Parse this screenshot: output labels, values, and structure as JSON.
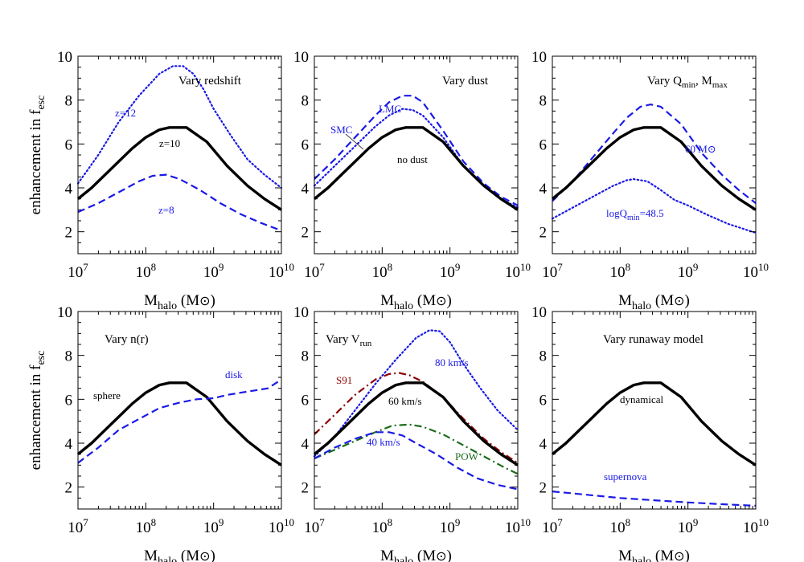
{
  "figure": {
    "xlabel": {
      "main": "M",
      "sub": "halo",
      "tail": " (M",
      "sun": "⊙",
      "close": ")"
    },
    "ylabel": {
      "main": "enhancement in f",
      "sub": "esc"
    },
    "xticks": [
      {
        "value": 7,
        "label": "10",
        "exp": "7"
      },
      {
        "value": 8,
        "label": "10",
        "exp": "8"
      },
      {
        "value": 9,
        "label": "10",
        "exp": "9"
      },
      {
        "value": 10,
        "label": "10",
        "exp": "10"
      }
    ],
    "yticks": [
      2,
      4,
      6,
      8,
      10
    ]
  },
  "chart_data": [
    {
      "type": "line",
      "title": "Vary redshift",
      "x_scale": "log",
      "xlim": [
        10000000.0,
        10000000000.0
      ],
      "ylim": [
        1,
        10
      ],
      "series": [
        {
          "name": "z=12",
          "style": "dotted",
          "color": "#1a1ae6",
          "width": 2.2,
          "x": [
            7,
            7.3,
            7.6,
            7.9,
            8.2,
            8.4,
            8.55,
            8.7,
            8.85,
            9.0,
            9.25,
            9.5,
            9.75,
            10
          ],
          "y": [
            4.2,
            5.5,
            7.0,
            8.2,
            9.2,
            9.55,
            9.55,
            9.2,
            8.5,
            7.6,
            6.4,
            5.3,
            4.6,
            4.0
          ]
        },
        {
          "name": "z=10",
          "style": "solid",
          "color": "#000000",
          "width": 3.4,
          "x": [
            7,
            7.2,
            7.5,
            7.8,
            8.0,
            8.2,
            8.35,
            8.6,
            8.9,
            9.2,
            9.5,
            9.75,
            10
          ],
          "y": [
            3.5,
            4.0,
            4.9,
            5.8,
            6.3,
            6.65,
            6.75,
            6.75,
            6.1,
            5.0,
            4.1,
            3.5,
            3.0
          ]
        },
        {
          "name": "z=8",
          "style": "dashed",
          "color": "#1a1ae6",
          "width": 2.2,
          "x": [
            7,
            7.3,
            7.6,
            7.9,
            8.1,
            8.3,
            8.5,
            8.8,
            9.1,
            9.4,
            9.7,
            10
          ],
          "y": [
            2.9,
            3.3,
            3.8,
            4.3,
            4.55,
            4.6,
            4.4,
            3.9,
            3.3,
            2.8,
            2.4,
            2.05
          ]
        }
      ]
    },
    {
      "type": "line",
      "title": "Vary dust",
      "x_scale": "log",
      "xlim": [
        10000000.0,
        10000000000.0
      ],
      "ylim": [
        1,
        10
      ],
      "series": [
        {
          "name": "LMC",
          "style": "dashed",
          "color": "#1a1ae6",
          "width": 2.2,
          "x": [
            7,
            7.3,
            7.6,
            7.9,
            8.1,
            8.3,
            8.45,
            8.6,
            8.9,
            9.2,
            9.5,
            9.75,
            10
          ],
          "y": [
            4.4,
            5.3,
            6.3,
            7.3,
            7.9,
            8.2,
            8.2,
            7.9,
            6.6,
            5.2,
            4.2,
            3.6,
            3.2
          ]
        },
        {
          "name": "SMC",
          "style": "dotted",
          "color": "#1a1ae6",
          "width": 2.2,
          "x": [
            7,
            7.3,
            7.6,
            7.9,
            8.1,
            8.3,
            8.45,
            8.6,
            8.9,
            9.2,
            9.5,
            9.75,
            10
          ],
          "y": [
            4.1,
            5.0,
            5.9,
            6.8,
            7.3,
            7.6,
            7.55,
            7.3,
            6.3,
            5.0,
            4.1,
            3.5,
            3.1
          ]
        },
        {
          "name": "no dust",
          "style": "solid",
          "color": "#000000",
          "width": 3.4,
          "x": [
            7,
            7.2,
            7.5,
            7.8,
            8.0,
            8.2,
            8.35,
            8.6,
            8.9,
            9.2,
            9.5,
            9.75,
            10
          ],
          "y": [
            3.5,
            4.0,
            4.9,
            5.8,
            6.3,
            6.65,
            6.75,
            6.75,
            6.1,
            5.0,
            4.1,
            3.5,
            3.0
          ]
        }
      ]
    },
    {
      "type": "line",
      "title": "Vary Q",
      "title_sub": "min",
      "title_tail": ", M",
      "title_sub2": "max",
      "x_scale": "log",
      "xlim": [
        10000000.0,
        10000000000.0
      ],
      "ylim": [
        1,
        10
      ],
      "series": [
        {
          "name": "60 M⊙",
          "style": "dashed",
          "color": "#1a1ae6",
          "width": 2.2,
          "x": [
            7,
            7.3,
            7.6,
            7.9,
            8.1,
            8.3,
            8.45,
            8.6,
            8.9,
            9.2,
            9.5,
            9.75,
            10
          ],
          "y": [
            3.4,
            4.3,
            5.4,
            6.5,
            7.2,
            7.7,
            7.8,
            7.7,
            6.9,
            5.6,
            4.6,
            3.9,
            3.3
          ]
        },
        {
          "name": "logQ",
          "sub": "min",
          "tail": "=48.5",
          "style": "dotted",
          "color": "#1a1ae6",
          "width": 2.2,
          "x": [
            7,
            7.3,
            7.6,
            7.9,
            8.1,
            8.2,
            8.4,
            8.6,
            8.8,
            9.0,
            9.3,
            9.6,
            10
          ],
          "y": [
            2.6,
            3.1,
            3.6,
            4.1,
            4.35,
            4.4,
            4.3,
            3.9,
            3.45,
            3.2,
            2.75,
            2.35,
            1.95
          ]
        },
        {
          "name": "",
          "style": "solid",
          "color": "#000000",
          "width": 3.4,
          "x": [
            7,
            7.2,
            7.5,
            7.8,
            8.0,
            8.2,
            8.35,
            8.6,
            8.9,
            9.2,
            9.5,
            9.75,
            10
          ],
          "y": [
            3.5,
            4.0,
            4.9,
            5.8,
            6.3,
            6.65,
            6.75,
            6.75,
            6.1,
            5.0,
            4.1,
            3.5,
            3.0
          ]
        }
      ]
    },
    {
      "type": "line",
      "title": "Vary n(r)",
      "x_scale": "log",
      "xlim": [
        10000000.0,
        10000000000.0
      ],
      "ylim": [
        1,
        10
      ],
      "series": [
        {
          "name": "sphere",
          "style": "solid",
          "color": "#000000",
          "width": 3.4,
          "x": [
            7,
            7.2,
            7.5,
            7.8,
            8.0,
            8.2,
            8.35,
            8.6,
            8.9,
            9.2,
            9.5,
            9.75,
            10
          ],
          "y": [
            3.5,
            4.0,
            4.9,
            5.8,
            6.3,
            6.65,
            6.75,
            6.75,
            6.1,
            5.0,
            4.1,
            3.5,
            3.0
          ]
        },
        {
          "name": "disk",
          "style": "dashed",
          "color": "#1a1ae6",
          "width": 2.2,
          "x": [
            7,
            7.3,
            7.6,
            7.9,
            8.2,
            8.5,
            8.75,
            9.0,
            9.2,
            9.4,
            9.6,
            9.8,
            10
          ],
          "y": [
            3.1,
            3.8,
            4.6,
            5.1,
            5.6,
            5.85,
            6.0,
            6.05,
            6.2,
            6.3,
            6.4,
            6.5,
            6.9
          ]
        }
      ]
    },
    {
      "type": "line",
      "title": "Vary V",
      "title_sub": "run",
      "x_scale": "log",
      "xlim": [
        10000000.0,
        10000000000.0
      ],
      "ylim": [
        1,
        10
      ],
      "series": [
        {
          "name": "80 km/s",
          "style": "dotted",
          "color": "#1a1ae6",
          "width": 2.2,
          "x": [
            7,
            7.3,
            7.6,
            7.9,
            8.2,
            8.5,
            8.7,
            8.85,
            9.0,
            9.2,
            9.45,
            9.7,
            10
          ],
          "y": [
            3.4,
            4.3,
            5.5,
            6.7,
            7.8,
            8.8,
            9.15,
            9.1,
            8.6,
            7.6,
            6.5,
            5.5,
            4.6
          ]
        },
        {
          "name": "S91",
          "style": "dashdot",
          "color": "#8b0000",
          "width": 2.2,
          "x": [
            7,
            7.3,
            7.6,
            7.9,
            8.1,
            8.25,
            8.4,
            8.6,
            8.9,
            9.2,
            9.5,
            9.75,
            10
          ],
          "y": [
            4.4,
            5.3,
            6.2,
            6.9,
            7.15,
            7.2,
            7.1,
            6.8,
            6.1,
            5.1,
            4.2,
            3.6,
            3.1
          ]
        },
        {
          "name": "60 km/s",
          "style": "solid",
          "color": "#000000",
          "width": 3.4,
          "x": [
            7,
            7.2,
            7.5,
            7.8,
            8.0,
            8.2,
            8.35,
            8.6,
            8.9,
            9.2,
            9.5,
            9.75,
            10
          ],
          "y": [
            3.5,
            4.0,
            4.9,
            5.8,
            6.3,
            6.65,
            6.75,
            6.75,
            6.1,
            5.0,
            4.1,
            3.5,
            3.0
          ]
        },
        {
          "name": "POW",
          "style": "dashdot",
          "color": "#1a6b1a",
          "width": 2.2,
          "x": [
            7,
            7.3,
            7.6,
            7.9,
            8.15,
            8.4,
            8.6,
            8.9,
            9.2,
            9.5,
            9.8,
            10
          ],
          "y": [
            3.3,
            3.7,
            4.1,
            4.5,
            4.8,
            4.85,
            4.75,
            4.4,
            3.9,
            3.4,
            2.9,
            2.6
          ]
        },
        {
          "name": "40 km/s",
          "style": "dashed",
          "color": "#1a1ae6",
          "width": 2.2,
          "x": [
            7,
            7.3,
            7.6,
            7.9,
            8.1,
            8.3,
            8.5,
            8.8,
            9.1,
            9.4,
            9.7,
            10
          ],
          "y": [
            3.3,
            3.8,
            4.2,
            4.5,
            4.5,
            4.35,
            4.0,
            3.5,
            2.9,
            2.4,
            2.1,
            1.9
          ]
        }
      ]
    },
    {
      "type": "line",
      "title": "Vary runaway model",
      "x_scale": "log",
      "xlim": [
        10000000.0,
        10000000000.0
      ],
      "ylim": [
        1,
        10
      ],
      "series": [
        {
          "name": "dynamical",
          "style": "solid",
          "color": "#000000",
          "width": 3.4,
          "x": [
            7,
            7.2,
            7.5,
            7.8,
            8.0,
            8.2,
            8.35,
            8.6,
            8.9,
            9.2,
            9.5,
            9.75,
            10
          ],
          "y": [
            3.5,
            4.0,
            4.9,
            5.8,
            6.3,
            6.65,
            6.75,
            6.75,
            6.1,
            5.0,
            4.1,
            3.5,
            3.0
          ]
        },
        {
          "name": "supernova",
          "style": "dashed",
          "color": "#1a1ae6",
          "width": 2.2,
          "x": [
            7,
            7.5,
            8.0,
            8.5,
            9.0,
            9.5,
            10
          ],
          "y": [
            1.8,
            1.65,
            1.5,
            1.4,
            1.3,
            1.22,
            1.15
          ]
        }
      ]
    }
  ]
}
